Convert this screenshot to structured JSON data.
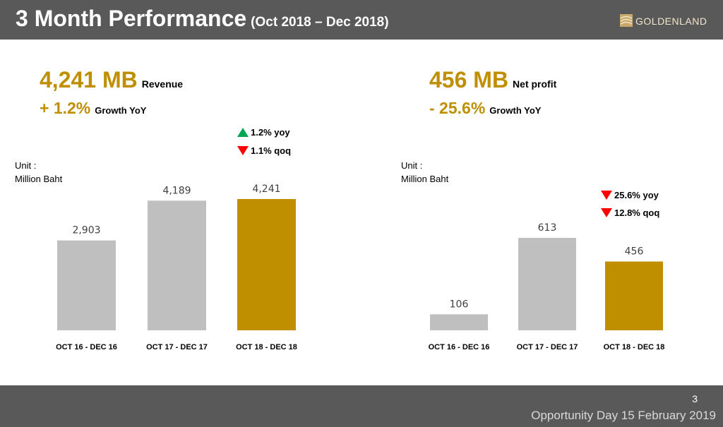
{
  "header": {
    "title": "3 Month Performance",
    "subtitle": "(Oct 2018 – Dec 2018)",
    "logo_text": "GOLDENLAND"
  },
  "colors": {
    "accent": "#bf8f00",
    "bar_grey": "#bfbfbf",
    "header_bg": "#595959",
    "up": "#00a651",
    "down": "#ff0000"
  },
  "left": {
    "kpi_value": "4,241 MB",
    "kpi_label": "Revenue",
    "growth_value": "+ 1.2%",
    "growth_label": "Growth YoY",
    "unit_line1": "Unit :",
    "unit_line2": "Million Baht",
    "notes": [
      {
        "direction": "up",
        "text": "1.2% yoy"
      },
      {
        "direction": "down",
        "text": "1.1% qoq"
      }
    ]
  },
  "right": {
    "kpi_value": "456 MB",
    "kpi_label": "Net profit",
    "growth_value": "- 25.6%",
    "growth_label": "Growth YoY",
    "unit_line1": "Unit :",
    "unit_line2": "Million Baht",
    "notes": [
      {
        "direction": "down",
        "text": "25.6% yoy"
      },
      {
        "direction": "down",
        "text": "12.8% qoq"
      }
    ]
  },
  "chart_data": [
    {
      "type": "bar",
      "categories": [
        "OCT 16 - DEC 16",
        "OCT 17 - DEC 17",
        "OCT 18 - DEC 18"
      ],
      "values": [
        2903,
        4189,
        4241
      ],
      "value_labels": [
        "2,903",
        "4,189",
        "4,241"
      ],
      "ylim": [
        0,
        4241
      ],
      "bar_colors": [
        "#bfbfbf",
        "#bfbfbf",
        "#bf8f00"
      ],
      "title": "",
      "xlabel": "",
      "ylabel": ""
    },
    {
      "type": "bar",
      "categories": [
        "OCT 16 - DEC 16",
        "OCT 17 - DEC 17",
        "OCT 18 - DEC 18"
      ],
      "values": [
        106,
        613,
        456
      ],
      "value_labels": [
        "106",
        "613",
        "456"
      ],
      "ylim": [
        0,
        613
      ],
      "bar_colors": [
        "#bfbfbf",
        "#bfbfbf",
        "#bf8f00"
      ],
      "title": "",
      "xlabel": "",
      "ylabel": ""
    }
  ],
  "footer": {
    "page_number": "3",
    "event": "Opportunity Day 15 February 2019"
  }
}
